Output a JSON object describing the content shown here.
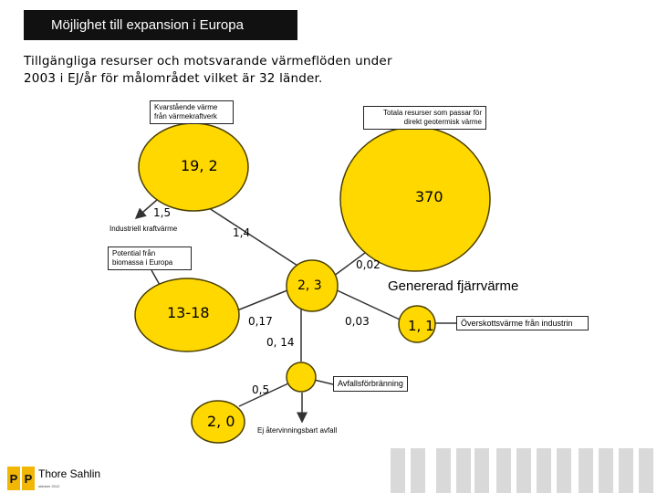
{
  "header": {
    "title": "Möjlighet till expansion i Europa",
    "subtitle": "Tillgängliga resurser och motsvarande värmeflöden under 2003 i EJ/år för målområdet vilket är 32 länder."
  },
  "diagram": {
    "boxes": {
      "kvarstaende": "Kvarstående värme från värmekraftverk",
      "totala": "Totala resurser som passar för direkt geotermisk värme",
      "biomassa": "Potential från biomassa i Europa",
      "overskott": "Överskottsvärme från industrin",
      "avfall": "Avfallsförbränning"
    },
    "labels": {
      "industriell": "Industriell kraftvärme",
      "genererad": "Genererad fjärrvärme",
      "ej_atervinningsbart": "Ej återvinningsbart avfall"
    },
    "values": {
      "v19_2": "19, 2",
      "v370": "370",
      "v1_5": "1,5",
      "v1_4": "1,4",
      "v0_02": "0,02",
      "v2_3": "2, 3",
      "v13_18": "13-18",
      "v0_17": "0,17",
      "v0_03": "0,03",
      "v1_1": "1, 1",
      "v0_14": "0, 14",
      "v0_5": "0,5",
      "v2_0": "2, 0"
    },
    "colors": {
      "node_fill": "#FFD800",
      "node_stroke": "#4A3F00",
      "arrow": "#333333",
      "grey_blocks": "#D9D9D9",
      "logo_yellow": "#F2B705"
    }
  },
  "footer": {
    "author": "Thore Sahlin",
    "date": "oktober 2012",
    "logo_text": "PP"
  }
}
